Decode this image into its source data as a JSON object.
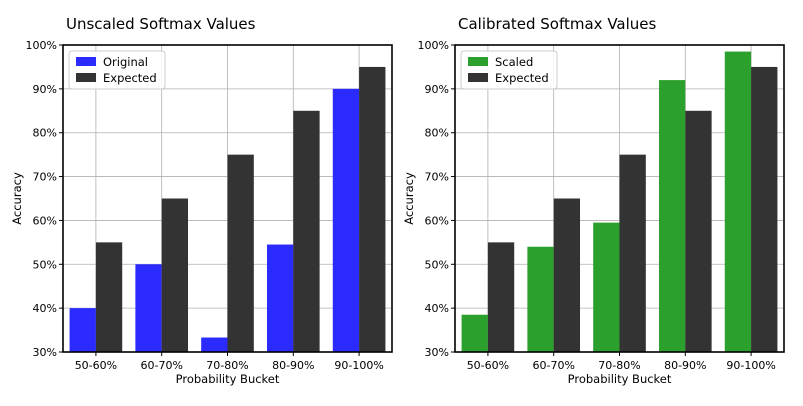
{
  "chart_data": [
    {
      "type": "bar",
      "title": "Unscaled Softmax Values",
      "xlabel": "Probability Bucket",
      "ylabel": "Accuracy",
      "ylim": [
        30,
        100
      ],
      "yticks": [
        "30%",
        "40%",
        "50%",
        "60%",
        "70%",
        "80%",
        "90%",
        "100%"
      ],
      "categories": [
        "50-60%",
        "60-70%",
        "70-80%",
        "80-90%",
        "90-100%"
      ],
      "grid": true,
      "legend_position": "top-left",
      "series": [
        {
          "name": "Original",
          "color": "#2b2bff",
          "values": [
            40,
            50,
            33.3,
            54.5,
            90
          ]
        },
        {
          "name": "Expected",
          "color": "#333333",
          "values": [
            55,
            65,
            75,
            85,
            95
          ]
        }
      ]
    },
    {
      "type": "bar",
      "title": "Calibrated Softmax Values",
      "xlabel": "Probability Bucket",
      "ylabel": "Accuracy",
      "ylim": [
        30,
        100
      ],
      "yticks": [
        "30%",
        "40%",
        "50%",
        "60%",
        "70%",
        "80%",
        "90%",
        "100%"
      ],
      "categories": [
        "50-60%",
        "60-70%",
        "70-80%",
        "80-90%",
        "90-100%"
      ],
      "grid": true,
      "legend_position": "top-left",
      "series": [
        {
          "name": "Scaled",
          "color": "#2ca02c",
          "values": [
            38.5,
            54,
            59.5,
            92,
            98.5
          ]
        },
        {
          "name": "Expected",
          "color": "#333333",
          "values": [
            55,
            65,
            75,
            85,
            95
          ]
        }
      ]
    }
  ]
}
